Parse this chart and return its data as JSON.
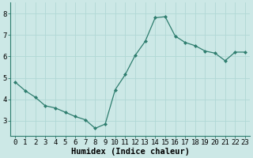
{
  "x": [
    0,
    1,
    2,
    3,
    4,
    5,
    6,
    7,
    8,
    9,
    10,
    11,
    12,
    13,
    14,
    15,
    16,
    17,
    18,
    19,
    20,
    21,
    22,
    23
  ],
  "y": [
    4.8,
    4.4,
    4.1,
    3.7,
    3.6,
    3.4,
    3.2,
    3.05,
    2.65,
    2.85,
    4.45,
    5.15,
    6.05,
    6.7,
    7.8,
    7.85,
    6.95,
    6.65,
    6.5,
    6.25,
    6.15,
    5.8,
    6.2,
    6.2
  ],
  "xlabel": "Humidex (Indice chaleur)",
  "xlim": [
    -0.5,
    23.5
  ],
  "ylim": [
    2.3,
    8.5
  ],
  "yticks": [
    3,
    4,
    5,
    6,
    7,
    8
  ],
  "xtick_labels": [
    "0",
    "1",
    "2",
    "3",
    "4",
    "5",
    "6",
    "7",
    "8",
    "9",
    "10",
    "11",
    "12",
    "13",
    "14",
    "15",
    "16",
    "17",
    "18",
    "19",
    "20",
    "21",
    "22",
    "23"
  ],
  "line_color": "#2e7d6e",
  "marker_color": "#2e7d6e",
  "bg_color": "#cce8e6",
  "grid_color": "#b0d8d5",
  "xlabel_fontsize": 7.5,
  "tick_fontsize": 6.5,
  "fig_width": 3.2,
  "fig_height": 2.0,
  "dpi": 100
}
